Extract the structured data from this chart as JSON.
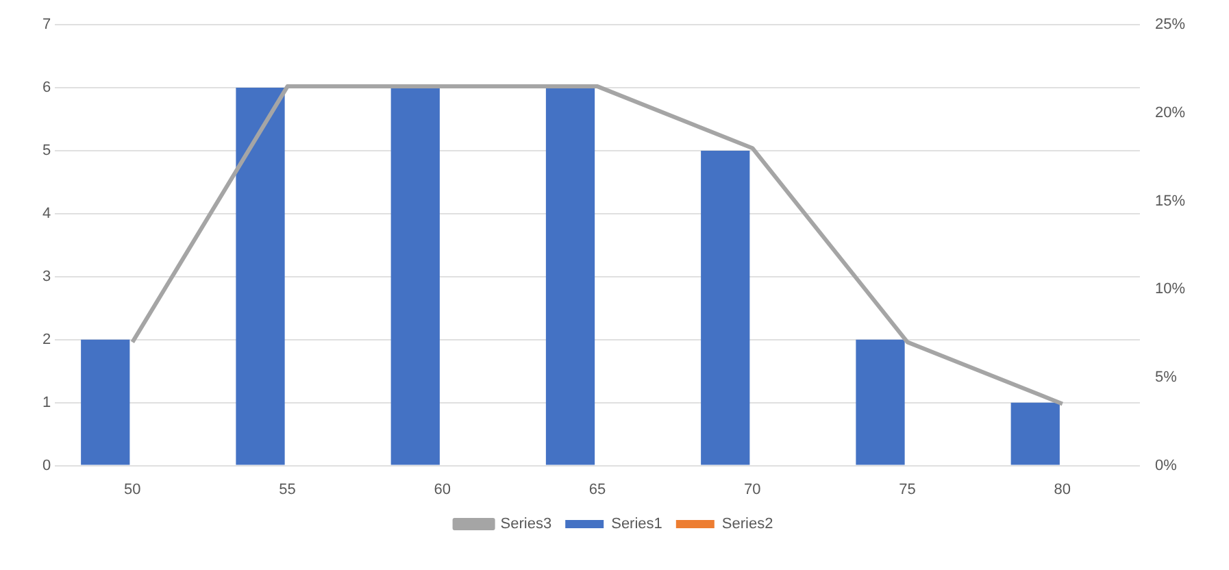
{
  "chart_data": {
    "type": "bar",
    "categories": [
      "50",
      "55",
      "60",
      "65",
      "70",
      "75",
      "80"
    ],
    "series": [
      {
        "name": "Series1",
        "color": "#4472c4",
        "values": [
          2,
          6,
          6,
          6,
          5,
          2,
          1
        ]
      },
      {
        "name": "Series2",
        "color": "#ed7d31",
        "values": [
          null,
          null,
          null,
          null,
          null,
          null,
          null
        ]
      },
      {
        "name": "Series3",
        "color": "#a5a5a5",
        "type": "line",
        "axis": "y2",
        "values": [
          7,
          21.5,
          21.5,
          21.5,
          18,
          7,
          3.5
        ]
      }
    ],
    "ylim": [
      0,
      7
    ],
    "yticks": [
      0,
      1,
      2,
      3,
      4,
      5,
      6,
      7
    ],
    "y2lim": [
      0,
      25
    ],
    "y2ticks": [
      {
        "value": 0,
        "label": "0%"
      },
      {
        "value": 5,
        "label": "5%"
      },
      {
        "value": 10,
        "label": "10%"
      },
      {
        "value": 15,
        "label": "15%"
      },
      {
        "value": 20,
        "label": "20%"
      },
      {
        "value": 25,
        "label": "25%"
      }
    ],
    "grid": "y",
    "legend": "bottom",
    "marker": "none"
  }
}
